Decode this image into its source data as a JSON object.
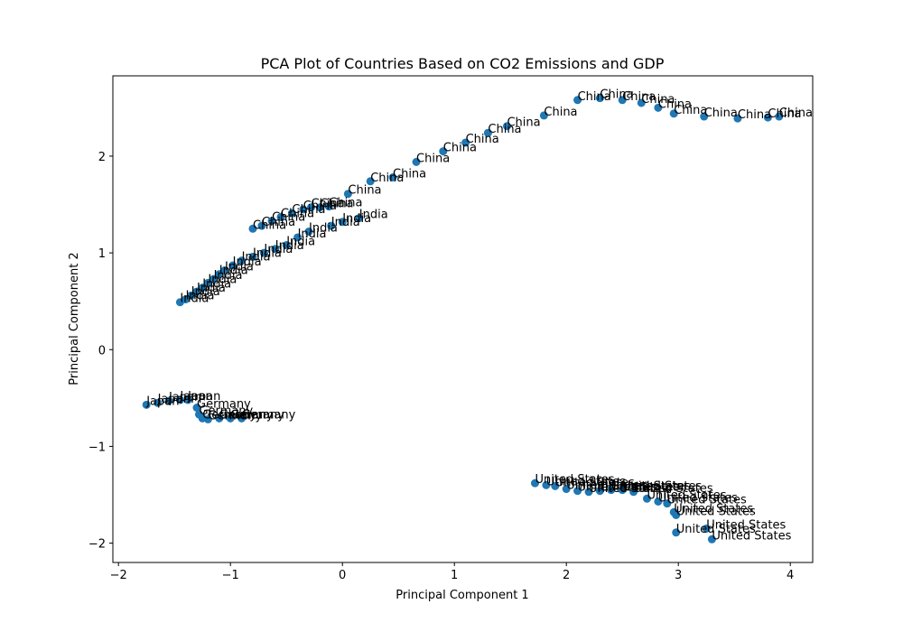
{
  "chart_data": {
    "type": "scatter",
    "title": "PCA Plot of Countries Based on CO2 Emissions and GDP",
    "xlabel": "Principal Component 1",
    "ylabel": "Principal Component 2",
    "xlim": [
      -2.05,
      4.2
    ],
    "ylim": [
      -2.2,
      2.83
    ],
    "xticks": [
      -2,
      -1,
      0,
      1,
      2,
      3,
      4
    ],
    "yticks": [
      -2,
      -1,
      0,
      1,
      2
    ],
    "xtick_labels": [
      "−2",
      "−1",
      "0",
      "1",
      "2",
      "3",
      "4"
    ],
    "ytick_labels": [
      "−2",
      "−1",
      "0",
      "1",
      "2"
    ],
    "marker_color": "#1f77b4",
    "grid": false,
    "points": [
      {
        "x": -0.8,
        "y": 1.25,
        "label": "China"
      },
      {
        "x": -0.72,
        "y": 1.28,
        "label": "China"
      },
      {
        "x": -0.63,
        "y": 1.33,
        "label": "China"
      },
      {
        "x": -0.55,
        "y": 1.37,
        "label": "China"
      },
      {
        "x": -0.45,
        "y": 1.41,
        "label": "China"
      },
      {
        "x": -0.35,
        "y": 1.45,
        "label": "China"
      },
      {
        "x": -0.28,
        "y": 1.47,
        "label": "China"
      },
      {
        "x": -0.2,
        "y": 1.47,
        "label": "China"
      },
      {
        "x": -0.12,
        "y": 1.48,
        "label": "China"
      },
      {
        "x": 0.05,
        "y": 1.61,
        "label": "China"
      },
      {
        "x": 0.25,
        "y": 1.74,
        "label": "China"
      },
      {
        "x": 0.45,
        "y": 1.78,
        "label": "China"
      },
      {
        "x": 0.66,
        "y": 1.94,
        "label": "China"
      },
      {
        "x": 0.9,
        "y": 2.05,
        "label": "China"
      },
      {
        "x": 1.1,
        "y": 2.14,
        "label": "China"
      },
      {
        "x": 1.3,
        "y": 2.24,
        "label": "China"
      },
      {
        "x": 1.47,
        "y": 2.31,
        "label": "China"
      },
      {
        "x": 1.8,
        "y": 2.42,
        "label": "China"
      },
      {
        "x": 2.1,
        "y": 2.58,
        "label": "China"
      },
      {
        "x": 2.3,
        "y": 2.6,
        "label": "China"
      },
      {
        "x": 2.5,
        "y": 2.58,
        "label": "China"
      },
      {
        "x": 2.67,
        "y": 2.55,
        "label": "China"
      },
      {
        "x": 2.82,
        "y": 2.5,
        "label": "China"
      },
      {
        "x": 2.96,
        "y": 2.44,
        "label": "China"
      },
      {
        "x": 3.23,
        "y": 2.41,
        "label": "China"
      },
      {
        "x": 3.53,
        "y": 2.39,
        "label": "China"
      },
      {
        "x": 3.8,
        "y": 2.4,
        "label": "China"
      },
      {
        "x": 3.9,
        "y": 2.41,
        "label": "China"
      },
      {
        "x": -1.45,
        "y": 0.49,
        "label": "India"
      },
      {
        "x": -1.4,
        "y": 0.52,
        "label": "India"
      },
      {
        "x": -1.35,
        "y": 0.56,
        "label": "India"
      },
      {
        "x": -1.3,
        "y": 0.6,
        "label": "India"
      },
      {
        "x": -1.25,
        "y": 0.64,
        "label": "India"
      },
      {
        "x": -1.2,
        "y": 0.69,
        "label": "India"
      },
      {
        "x": -1.15,
        "y": 0.73,
        "label": "India"
      },
      {
        "x": -1.1,
        "y": 0.78,
        "label": "India"
      },
      {
        "x": -1.05,
        "y": 0.82,
        "label": "India"
      },
      {
        "x": -0.98,
        "y": 0.87,
        "label": "India"
      },
      {
        "x": -0.9,
        "y": 0.92,
        "label": "India"
      },
      {
        "x": -0.8,
        "y": 0.96,
        "label": "India"
      },
      {
        "x": -0.7,
        "y": 1.0,
        "label": "India"
      },
      {
        "x": -0.6,
        "y": 1.04,
        "label": "India"
      },
      {
        "x": -0.5,
        "y": 1.08,
        "label": "India"
      },
      {
        "x": -0.4,
        "y": 1.16,
        "label": "India"
      },
      {
        "x": -0.3,
        "y": 1.22,
        "label": "India"
      },
      {
        "x": -0.1,
        "y": 1.28,
        "label": "India"
      },
      {
        "x": 0.0,
        "y": 1.32,
        "label": "India"
      },
      {
        "x": 0.15,
        "y": 1.36,
        "label": "India"
      },
      {
        "x": -1.75,
        "y": -0.57,
        "label": "Japan"
      },
      {
        "x": -1.65,
        "y": -0.55,
        "label": "Japan"
      },
      {
        "x": -1.55,
        "y": -0.53,
        "label": "Japan"
      },
      {
        "x": -1.45,
        "y": -0.52,
        "label": "Japan"
      },
      {
        "x": -1.38,
        "y": -0.52,
        "label": "Japan"
      },
      {
        "x": -1.3,
        "y": -0.6,
        "label": "Germany"
      },
      {
        "x": -1.28,
        "y": -0.67,
        "label": "Germany"
      },
      {
        "x": -1.25,
        "y": -0.71,
        "label": "Germany"
      },
      {
        "x": -1.2,
        "y": -0.72,
        "label": "Germany"
      },
      {
        "x": -1.1,
        "y": -0.71,
        "label": "Germany"
      },
      {
        "x": -1.0,
        "y": -0.71,
        "label": "Germany"
      },
      {
        "x": -0.9,
        "y": -0.71,
        "label": "Germany"
      },
      {
        "x": 1.72,
        "y": -1.38,
        "label": "United States"
      },
      {
        "x": 1.82,
        "y": -1.4,
        "label": "United States"
      },
      {
        "x": 1.9,
        "y": -1.41,
        "label": "United States"
      },
      {
        "x": 2.0,
        "y": -1.44,
        "label": "United States"
      },
      {
        "x": 2.1,
        "y": -1.46,
        "label": "United States"
      },
      {
        "x": 2.2,
        "y": -1.47,
        "label": "United States"
      },
      {
        "x": 2.3,
        "y": -1.46,
        "label": "United States"
      },
      {
        "x": 2.4,
        "y": -1.45,
        "label": "United States"
      },
      {
        "x": 2.5,
        "y": -1.45,
        "label": "United States"
      },
      {
        "x": 2.6,
        "y": -1.47,
        "label": "United States"
      },
      {
        "x": 2.72,
        "y": -1.54,
        "label": "United States"
      },
      {
        "x": 2.82,
        "y": -1.57,
        "label": "United States"
      },
      {
        "x": 2.9,
        "y": -1.59,
        "label": "United States"
      },
      {
        "x": 2.96,
        "y": -1.68,
        "label": "United States"
      },
      {
        "x": 2.98,
        "y": -1.71,
        "label": "United States"
      },
      {
        "x": 2.98,
        "y": -1.89,
        "label": "United States"
      },
      {
        "x": 3.25,
        "y": -1.85,
        "label": "United States"
      },
      {
        "x": 3.3,
        "y": -1.96,
        "label": "United States"
      }
    ]
  }
}
